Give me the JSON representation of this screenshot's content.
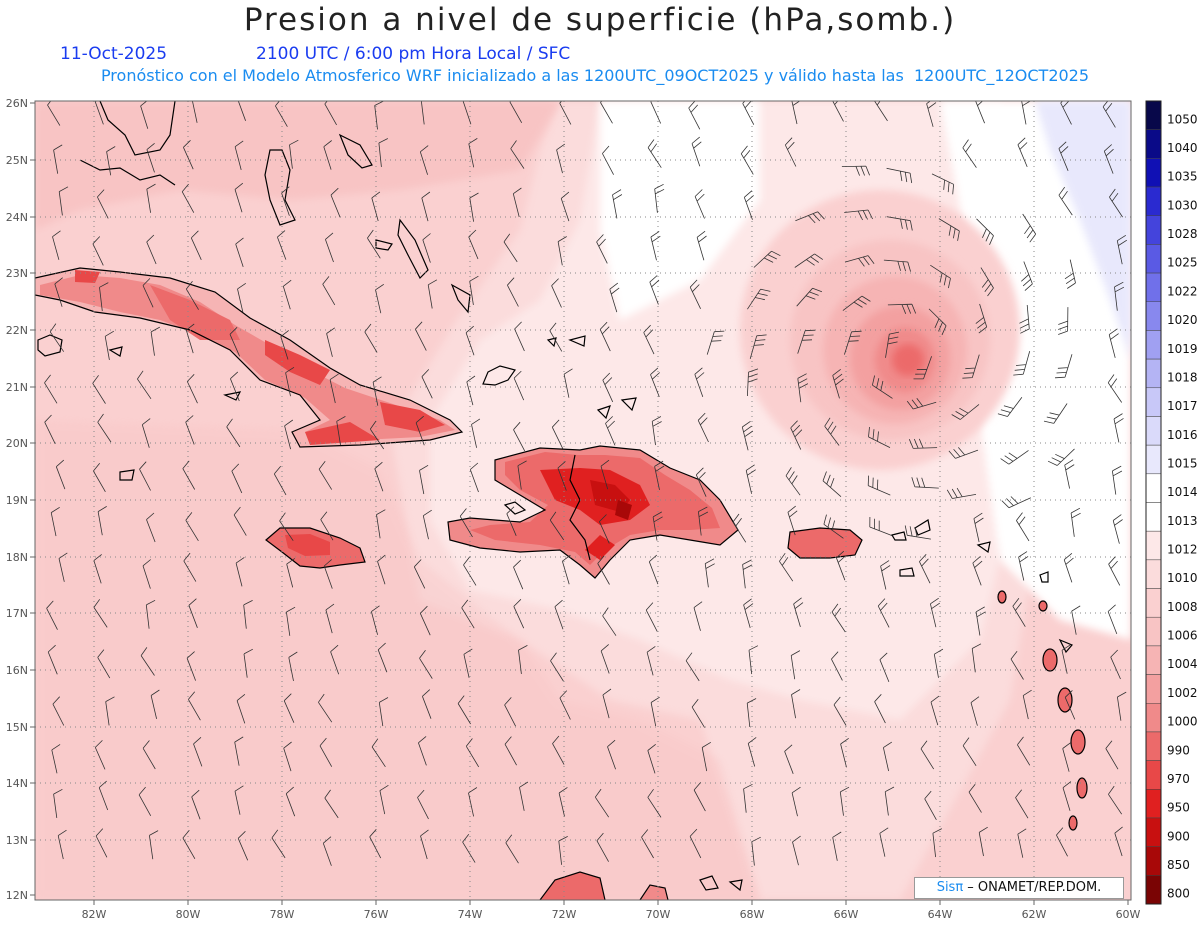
{
  "title": "Presion a nivel de superficie (hPa,somb.)",
  "subtitle": {
    "date": "11-Oct-2025",
    "time": "2100 UTC / 6:00 pm Hora Local / SFC",
    "model": "Pronóstico con el Modelo Atmosferico WRF inicializado a las 1200UTC_09OCT2025 y válido hasta las  1200UTC_12OCT2025"
  },
  "axes": {
    "lat_labels": [
      "26N",
      "25N",
      "24N",
      "23N",
      "22N",
      "21N",
      "20N",
      "19N",
      "18N",
      "17N",
      "16N",
      "15N",
      "14N",
      "13N",
      "12N"
    ],
    "lon_labels": [
      "82W",
      "80W",
      "78W",
      "76W",
      "74W",
      "72W",
      "70W",
      "68W",
      "66W",
      "64W",
      "62W",
      "60W"
    ]
  },
  "colorbar": {
    "levels": [
      "1050",
      "1040",
      "1035",
      "1030",
      "1028",
      "1025",
      "1022",
      "1020",
      "1019",
      "1018",
      "1017",
      "1016",
      "1015",
      "1014",
      "1013",
      "1012",
      "1010",
      "1008",
      "1006",
      "1004",
      "1002",
      "1000",
      "990",
      "970",
      "950",
      "900",
      "850",
      "800"
    ],
    "colors": [
      "#08084a",
      "#0a0a88",
      "#1010b4",
      "#2a2ad0",
      "#4444dc",
      "#5a5ae4",
      "#7070ea",
      "#8888ee",
      "#a0a0f2",
      "#b4b4f4",
      "#c8c8f8",
      "#dadafa",
      "#e8e8fc",
      "#ffffff",
      "#ffffff",
      "#fde8e8",
      "#fbdcdc",
      "#fad0d0",
      "#f8c4c4",
      "#f6b4b4",
      "#f3a0a0",
      "#f08a8a",
      "#ec6a6a",
      "#e84848",
      "#e02020",
      "#c81010",
      "#a80808",
      "#7a0404"
    ]
  },
  "credit": {
    "logo": "Sisπ",
    "text": " – ONAMET/REP.DOM."
  }
}
